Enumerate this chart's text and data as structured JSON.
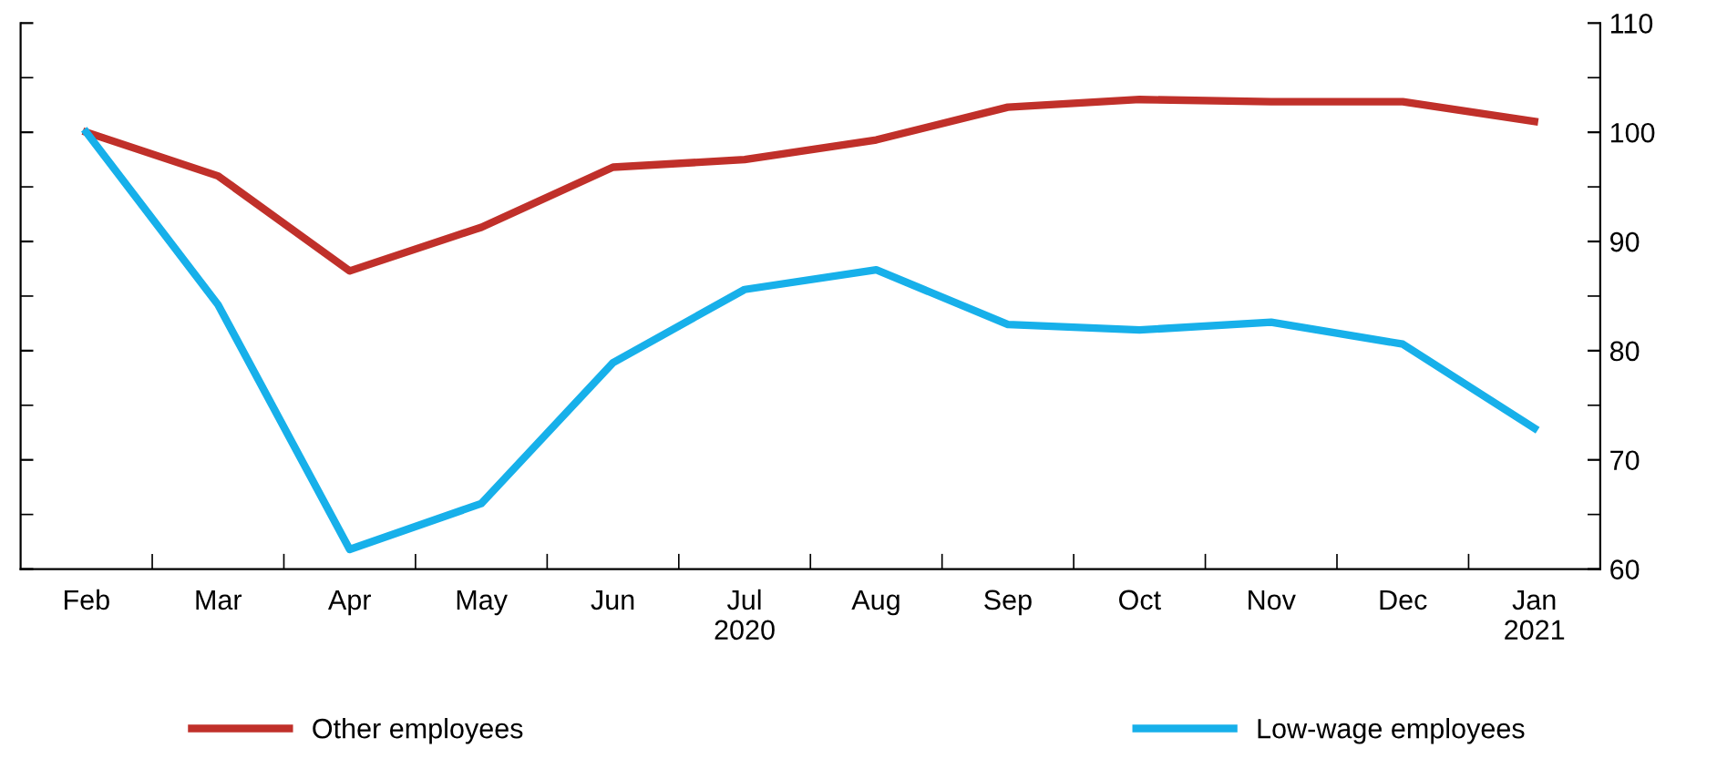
{
  "chart_data": {
    "type": "line",
    "categories": [
      "Feb",
      "Mar",
      "Apr",
      "May",
      "Jun",
      "Jul\n2020",
      "Aug",
      "Sep",
      "Oct",
      "Nov",
      "Dec",
      "Jan\n2021"
    ],
    "series": [
      {
        "name": "Other employees",
        "color": "#c0302a",
        "values": [
          100,
          96.0,
          87.3,
          91.3,
          96.8,
          97.5,
          99.3,
          102.3,
          103.0,
          102.8,
          102.8,
          101.0
        ]
      },
      {
        "name": "Low-wage employees",
        "color": "#17b0ea",
        "values": [
          100,
          84.2,
          61.8,
          66.0,
          78.9,
          85.6,
          87.4,
          82.4,
          81.9,
          82.6,
          80.6,
          72.9
        ]
      }
    ],
    "ylim": [
      60,
      110
    ],
    "yticks": [
      60,
      70,
      80,
      90,
      100,
      110
    ],
    "grid": false,
    "legend": "bottom",
    "marker": "none",
    "line_style": "solid"
  }
}
